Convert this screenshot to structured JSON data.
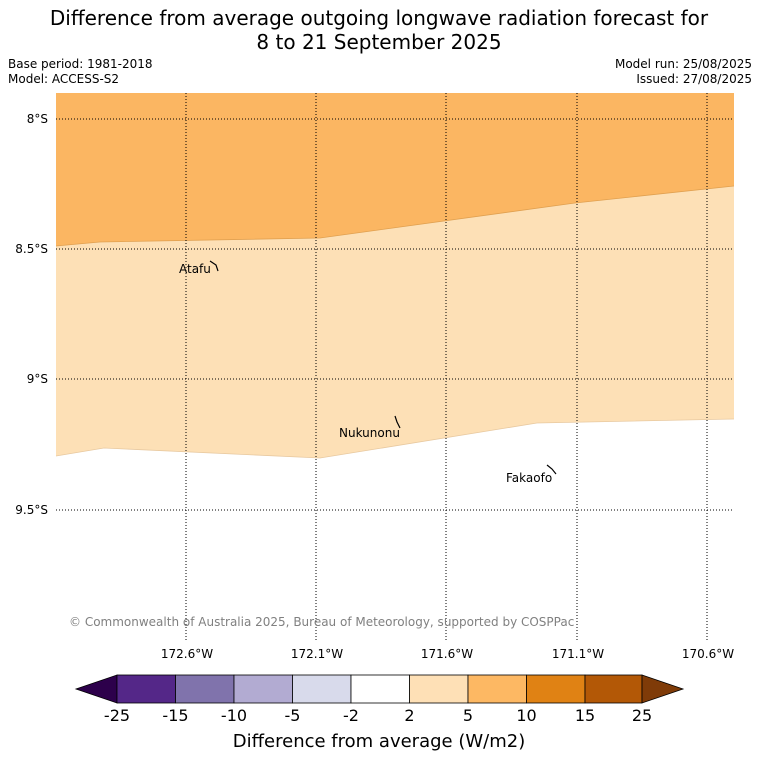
{
  "title_line1": "Difference from average outgoing longwave radiation forecast for",
  "title_line2": "8 to 21 September 2025",
  "base_period": "Base period: 1981-2018",
  "model": "Model: ACCESS-S2",
  "model_run": "Model run: 25/08/2025",
  "issued": "Issued: 27/08/2025",
  "map": {
    "lat_labels": [
      "8°S",
      "8.5°S",
      "9°S",
      "9.5°S"
    ],
    "lon_labels": [
      "172.6°W",
      "172.1°W",
      "171.6°W",
      "171.1°W",
      "170.6°W"
    ],
    "places": [
      "Atafu",
      "Nukunonu",
      "Fakaofo"
    ],
    "copyright": "© Commonwealth of Australia 2025, Bureau of Meteorology, supported by COSPPac",
    "fill_colors": {
      "band_5_10": "#fbb662",
      "band_2_5": "#fde0b6",
      "band_neutral": "#ffffff"
    }
  },
  "colorbar": {
    "ticks": [
      "-25",
      "-15",
      "-10",
      "-5",
      "-2",
      "2",
      "5",
      "10",
      "15",
      "25"
    ],
    "colors": [
      "#2d004b",
      "#542788",
      "#8073ac",
      "#b2abd2",
      "#d8daeb",
      "#ffffff",
      "#fee0b6",
      "#fdb863",
      "#e08214",
      "#b35806",
      "#7f3b08"
    ],
    "label": "Difference from average (W/m2)"
  }
}
